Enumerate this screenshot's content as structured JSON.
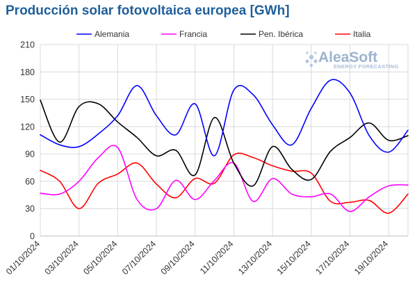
{
  "chart_data": {
    "type": "line",
    "title": "Producción solar fotovoltaica europea [GWh]",
    "ylim": [
      0,
      210
    ],
    "yticks": [
      0,
      30,
      60,
      90,
      120,
      150,
      180,
      210
    ],
    "x": [
      "01/10/2024",
      "02/10/2024",
      "03/10/2024",
      "04/10/2024",
      "05/10/2024",
      "06/10/2024",
      "07/10/2024",
      "08/10/2024",
      "09/10/2024",
      "10/10/2024",
      "11/10/2024",
      "12/10/2024",
      "13/10/2024",
      "14/10/2024",
      "15/10/2024",
      "16/10/2024",
      "17/10/2024",
      "18/10/2024",
      "19/10/2024",
      "20/10/2024"
    ],
    "xtick_labels": [
      "01/10/2024",
      "03/10/2024",
      "05/10/2024",
      "07/10/2024",
      "09/10/2024",
      "11/10/2024",
      "13/10/2024",
      "15/10/2024",
      "17/10/2024",
      "19/10/2024"
    ],
    "grid": true,
    "legend_position": "top",
    "series": [
      {
        "name": "Alemania",
        "color": "#0000ff",
        "values": [
          111,
          100,
          98,
          112,
          132,
          165,
          132,
          111,
          145,
          88,
          160,
          155,
          122,
          100,
          140,
          171,
          157,
          110,
          92,
          116
        ]
      },
      {
        "name": "Francia",
        "color": "#ff00ff",
        "values": [
          47,
          46,
          60,
          86,
          97,
          40,
          30,
          61,
          40,
          61,
          80,
          38,
          63,
          46,
          43,
          46,
          27,
          43,
          55,
          56
        ]
      },
      {
        "name": "Pen. Ibérica",
        "color": "#000000",
        "values": [
          149,
          103,
          142,
          145,
          125,
          108,
          88,
          94,
          67,
          130,
          80,
          55,
          98,
          73,
          62,
          93,
          108,
          124,
          105,
          110
        ]
      },
      {
        "name": "Italia",
        "color": "#ff0000",
        "values": [
          72,
          60,
          30,
          58,
          68,
          80,
          57,
          42,
          63,
          58,
          89,
          86,
          77,
          71,
          69,
          38,
          37,
          39,
          25,
          46
        ]
      }
    ]
  },
  "logo": {
    "name": "AleaSoft",
    "tagline": "ENERGY FORECASTING"
  }
}
